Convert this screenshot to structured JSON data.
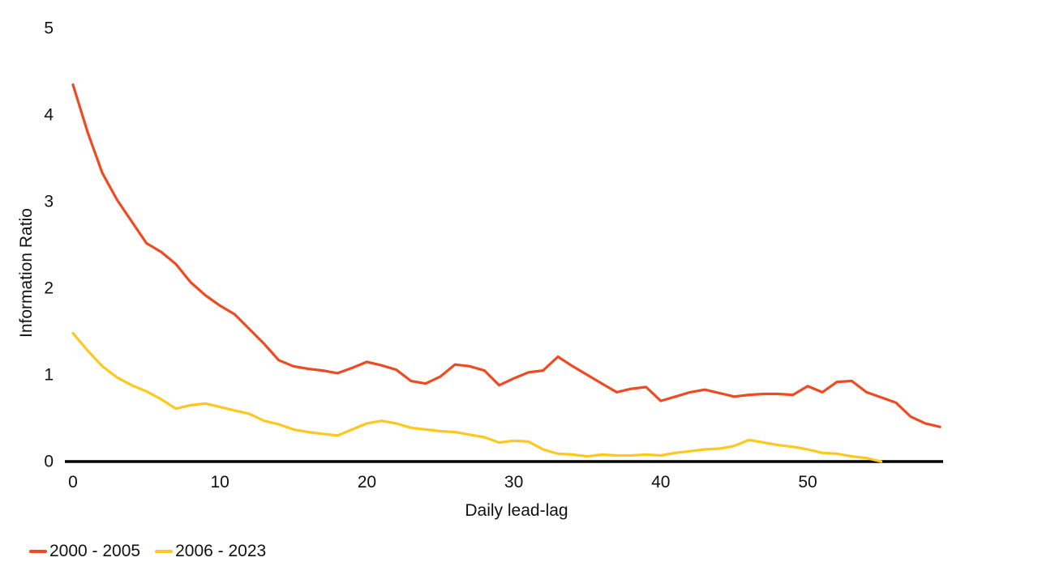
{
  "chart_data": {
    "type": "line",
    "title": "",
    "xlabel": "Daily lead-lag",
    "ylabel": "Information Ratio",
    "x_axis": {
      "min": 0,
      "max": 59,
      "ticks": [
        0,
        10,
        20,
        30,
        40,
        50
      ]
    },
    "y_axis": {
      "min": 0,
      "max": 5,
      "ticks": [
        0,
        1,
        2,
        3,
        4,
        5
      ]
    },
    "grid": false,
    "legend_position": "bottom-left",
    "axis_line_color": "#000000",
    "series": [
      {
        "name": "2000 - 2005",
        "color": "#EF4B22",
        "x_start": 0,
        "x_step": 1,
        "values": [
          4.35,
          3.8,
          3.33,
          3.02,
          2.77,
          2.52,
          2.42,
          2.28,
          2.07,
          1.92,
          1.8,
          1.7,
          1.53,
          1.36,
          1.17,
          1.1,
          1.07,
          1.05,
          1.02,
          1.08,
          1.15,
          1.11,
          1.06,
          0.93,
          0.9,
          0.98,
          1.12,
          1.1,
          1.05,
          0.88,
          0.96,
          1.03,
          1.05,
          1.21,
          1.1,
          1.0,
          0.9,
          0.8,
          0.84,
          0.86,
          0.7,
          0.75,
          0.8,
          0.83,
          0.79,
          0.75,
          0.77,
          0.78,
          0.78,
          0.77,
          0.87,
          0.8,
          0.92,
          0.93,
          0.8,
          0.74,
          0.68,
          0.52,
          0.44,
          0.4
        ]
      },
      {
        "name": "2006 - 2023",
        "color": "#FFC81E",
        "x_start": 0,
        "x_step": 1,
        "values": [
          1.48,
          1.28,
          1.1,
          0.97,
          0.88,
          0.81,
          0.72,
          0.61,
          0.65,
          0.67,
          0.63,
          0.59,
          0.55,
          0.47,
          0.43,
          0.37,
          0.34,
          0.32,
          0.3,
          0.37,
          0.44,
          0.47,
          0.44,
          0.39,
          0.37,
          0.35,
          0.34,
          0.31,
          0.28,
          0.22,
          0.24,
          0.23,
          0.14,
          0.09,
          0.08,
          0.06,
          0.08,
          0.07,
          0.07,
          0.08,
          0.07,
          0.1,
          0.12,
          0.14,
          0.15,
          0.18,
          0.25,
          0.22,
          0.19,
          0.17,
          0.14,
          0.1,
          0.09,
          0.06,
          0.04,
          0.0
        ]
      }
    ]
  }
}
